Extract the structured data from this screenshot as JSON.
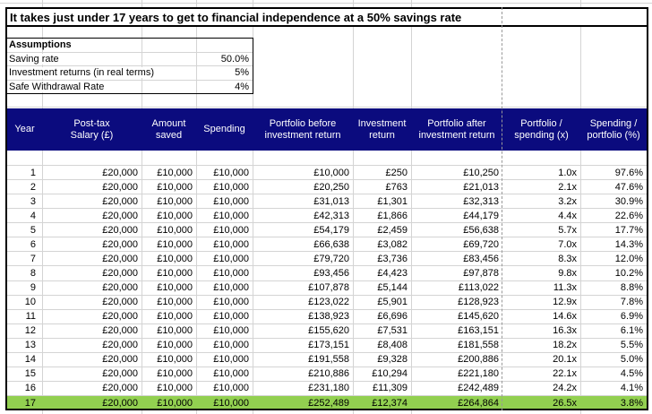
{
  "title": "It takes just under 17 years to get to financial independence at a 50% savings rate",
  "assumptions": {
    "heading": "Assumptions",
    "rows": [
      {
        "label": "Saving rate",
        "value": "50.0%"
      },
      {
        "label": "Investment returns (in real terms)",
        "value": "5%"
      },
      {
        "label": "Safe Withdrawal Rate",
        "value": "4%"
      }
    ]
  },
  "table": {
    "header_bg": "#0b0b7e",
    "header_text_color": "#ffffff",
    "highlight_color": "#92d050",
    "highlight_row_index": 16,
    "columns": [
      "Year",
      "Post-tax\nSalary (£)",
      "Amount\nsaved",
      "Spending",
      "Portfolio before\ninvestment return",
      "Investment\nreturn",
      "Portfolio after\ninvestment return",
      "Portfolio /\nspending (x)",
      "Spending /\nportfolio (%)"
    ],
    "rows": [
      [
        "1",
        "£20,000",
        "£10,000",
        "£10,000",
        "£10,000",
        "£250",
        "£10,250",
        "1.0x",
        "97.6%"
      ],
      [
        "2",
        "£20,000",
        "£10,000",
        "£10,000",
        "£20,250",
        "£763",
        "£21,013",
        "2.1x",
        "47.6%"
      ],
      [
        "3",
        "£20,000",
        "£10,000",
        "£10,000",
        "£31,013",
        "£1,301",
        "£32,313",
        "3.2x",
        "30.9%"
      ],
      [
        "4",
        "£20,000",
        "£10,000",
        "£10,000",
        "£42,313",
        "£1,866",
        "£44,179",
        "4.4x",
        "22.6%"
      ],
      [
        "5",
        "£20,000",
        "£10,000",
        "£10,000",
        "£54,179",
        "£2,459",
        "£56,638",
        "5.7x",
        "17.7%"
      ],
      [
        "6",
        "£20,000",
        "£10,000",
        "£10,000",
        "£66,638",
        "£3,082",
        "£69,720",
        "7.0x",
        "14.3%"
      ],
      [
        "7",
        "£20,000",
        "£10,000",
        "£10,000",
        "£79,720",
        "£3,736",
        "£83,456",
        "8.3x",
        "12.0%"
      ],
      [
        "8",
        "£20,000",
        "£10,000",
        "£10,000",
        "£93,456",
        "£4,423",
        "£97,878",
        "9.8x",
        "10.2%"
      ],
      [
        "9",
        "£20,000",
        "£10,000",
        "£10,000",
        "£107,878",
        "£5,144",
        "£113,022",
        "11.3x",
        "8.8%"
      ],
      [
        "10",
        "£20,000",
        "£10,000",
        "£10,000",
        "£123,022",
        "£5,901",
        "£128,923",
        "12.9x",
        "7.8%"
      ],
      [
        "11",
        "£20,000",
        "£10,000",
        "£10,000",
        "£138,923",
        "£6,696",
        "£145,620",
        "14.6x",
        "6.9%"
      ],
      [
        "12",
        "£20,000",
        "£10,000",
        "£10,000",
        "£155,620",
        "£7,531",
        "£163,151",
        "16.3x",
        "6.1%"
      ],
      [
        "13",
        "£20,000",
        "£10,000",
        "£10,000",
        "£173,151",
        "£8,408",
        "£181,558",
        "18.2x",
        "5.5%"
      ],
      [
        "14",
        "£20,000",
        "£10,000",
        "£10,000",
        "£191,558",
        "£9,328",
        "£200,886",
        "20.1x",
        "5.0%"
      ],
      [
        "15",
        "£20,000",
        "£10,000",
        "£10,000",
        "£210,886",
        "£10,294",
        "£221,180",
        "22.1x",
        "4.5%"
      ],
      [
        "16",
        "£20,000",
        "£10,000",
        "£10,000",
        "£231,180",
        "£11,309",
        "£242,489",
        "24.2x",
        "4.1%"
      ],
      [
        "17",
        "£20,000",
        "£10,000",
        "£10,000",
        "£252,489",
        "£12,374",
        "£264,864",
        "26.5x",
        "3.8%"
      ]
    ]
  }
}
